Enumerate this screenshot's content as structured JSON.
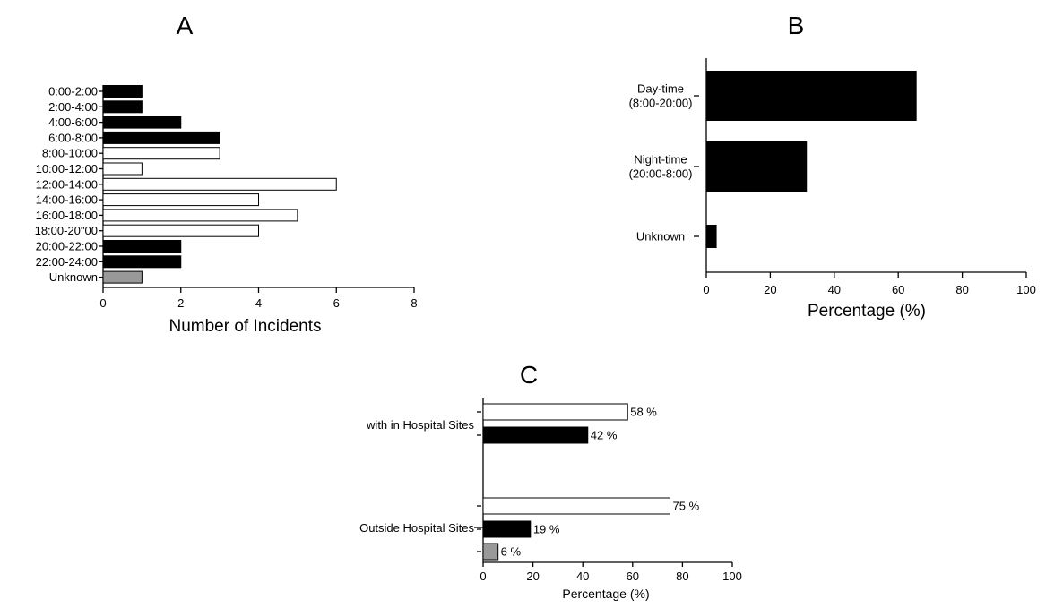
{
  "chart_data": [
    {
      "panel": "A",
      "type": "bar",
      "orientation": "horizontal",
      "categories": [
        "0:00-2:00",
        "2:00-4:00",
        "4:00-6:00",
        "6:00-8:00",
        "8:00-10:00",
        "10:00-12:00",
        "12:00-14:00",
        "14:00-16:00",
        "16:00-18:00",
        "18:00-20\"00",
        "20:00-22:00",
        "22:00-24:00",
        "Unknown"
      ],
      "values": [
        1,
        1,
        2,
        3,
        3,
        1,
        6,
        4,
        5,
        4,
        2,
        2,
        1
      ],
      "bar_colors": [
        "#000000",
        "#000000",
        "#000000",
        "#000000",
        "#ffffff",
        "#ffffff",
        "#ffffff",
        "#ffffff",
        "#ffffff",
        "#ffffff",
        "#000000",
        "#000000",
        "#999999"
      ],
      "xlabel": "Number of Incidents",
      "xlim": [
        0,
        8
      ],
      "xticks": [
        0,
        2,
        4,
        6,
        8
      ]
    },
    {
      "panel": "B",
      "type": "bar",
      "orientation": "horizontal",
      "categories": [
        [
          "Day-time",
          "(8:00-20:00)"
        ],
        [
          "Night-time",
          "(20:00-8:00)"
        ],
        [
          "Unknown"
        ]
      ],
      "values": [
        65.6,
        31.3,
        3.1
      ],
      "bar_colors": [
        "#000000",
        "#000000",
        "#000000"
      ],
      "xlabel": "Percentage (%)",
      "xlim": [
        0,
        100
      ],
      "xticks": [
        0,
        20,
        40,
        60,
        80,
        100
      ]
    },
    {
      "panel": "C",
      "type": "bar",
      "orientation": "horizontal",
      "groups": [
        {
          "label": "with in Hospital Sites",
          "values": [
            58,
            42
          ],
          "value_labels": [
            "58 %",
            "42 %"
          ],
          "bar_colors": [
            "#ffffff",
            "#000000"
          ]
        },
        {
          "label": "Outside Hospital Sites",
          "values": [
            75,
            19,
            6
          ],
          "value_labels": [
            "75 %",
            "19 %",
            "6 %"
          ],
          "bar_colors": [
            "#ffffff",
            "#000000",
            "#999999"
          ]
        }
      ],
      "xlabel": "Percentage (%)",
      "xlim": [
        0,
        100
      ],
      "xticks": [
        0,
        20,
        40,
        60,
        80,
        100
      ]
    }
  ]
}
